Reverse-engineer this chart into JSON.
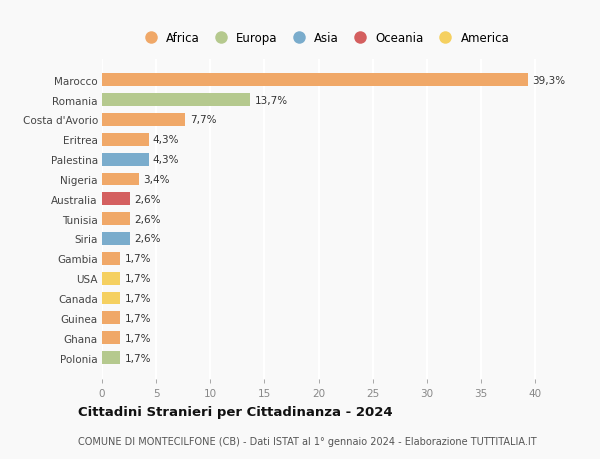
{
  "countries": [
    "Marocco",
    "Romania",
    "Costa d'Avorio",
    "Eritrea",
    "Palestina",
    "Nigeria",
    "Australia",
    "Tunisia",
    "Siria",
    "Gambia",
    "USA",
    "Canada",
    "Guinea",
    "Ghana",
    "Polonia"
  ],
  "values": [
    39.3,
    13.7,
    7.7,
    4.3,
    4.3,
    3.4,
    2.6,
    2.6,
    2.6,
    1.7,
    1.7,
    1.7,
    1.7,
    1.7,
    1.7
  ],
  "labels": [
    "39,3%",
    "13,7%",
    "7,7%",
    "4,3%",
    "4,3%",
    "3,4%",
    "2,6%",
    "2,6%",
    "2,6%",
    "1,7%",
    "1,7%",
    "1,7%",
    "1,7%",
    "1,7%",
    "1,7%"
  ],
  "colors": [
    "#f0a868",
    "#b5c98e",
    "#f0a868",
    "#f0a868",
    "#7aaccc",
    "#f0a868",
    "#d45f5f",
    "#f0a868",
    "#7aaccc",
    "#f0a868",
    "#f5d060",
    "#f5d060",
    "#f0a868",
    "#f0a868",
    "#b5c98e"
  ],
  "continent_colors": {
    "Africa": "#f0a868",
    "Europa": "#b5c98e",
    "Asia": "#7aaccc",
    "Oceania": "#d45f5f",
    "America": "#f5d060"
  },
  "legend_order": [
    "Africa",
    "Europa",
    "Asia",
    "Oceania",
    "America"
  ],
  "xlim": [
    0,
    41
  ],
  "xticks": [
    0,
    5,
    10,
    15,
    20,
    25,
    30,
    35,
    40
  ],
  "title": "Cittadini Stranieri per Cittadinanza - 2024",
  "subtitle": "COMUNE DI MONTECILFONE (CB) - Dati ISTAT al 1° gennaio 2024 - Elaborazione TUTTITALIA.IT",
  "bg_color": "#f9f9f9",
  "grid_color": "#ffffff",
  "bar_height": 0.65,
  "label_fontsize": 7.5,
  "ytick_fontsize": 7.5,
  "xtick_fontsize": 7.5,
  "legend_fontsize": 8.5,
  "title_fontsize": 9.5,
  "subtitle_fontsize": 7.0
}
